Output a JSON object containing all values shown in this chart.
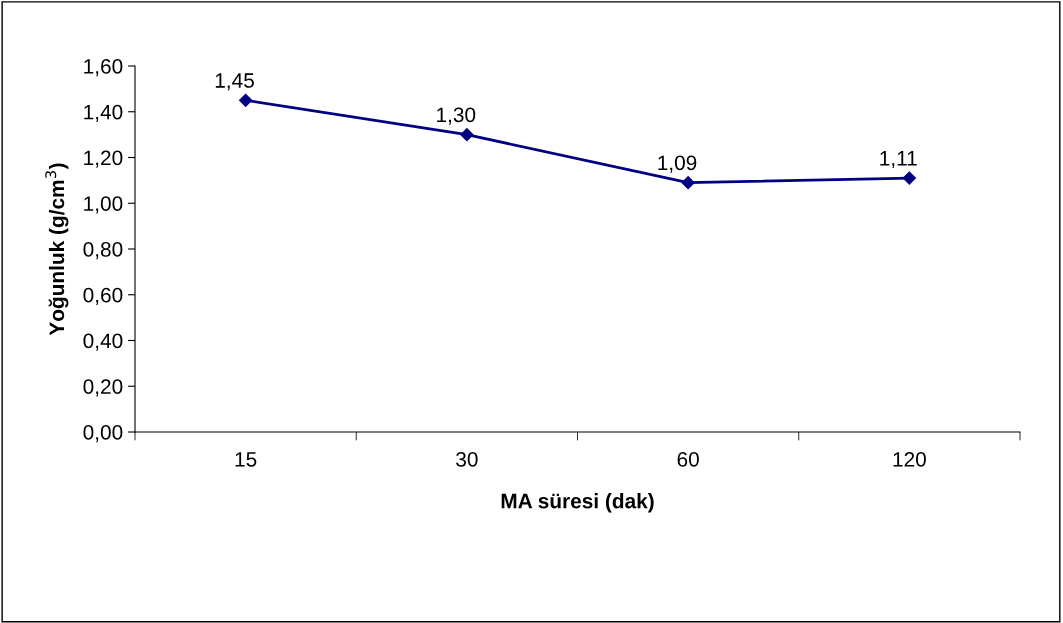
{
  "chart_data": {
    "type": "line",
    "xlabel": "MA süresi (dak)",
    "ylabel": "Yoğunluk (g/cm$^{3}$)",
    "categories": [
      "15",
      "30",
      "60",
      "120"
    ],
    "series": [
      {
        "color": "#000080",
        "values": [
          1.45,
          1.3,
          1.09,
          1.11
        ],
        "value_labels": [
          "1,45",
          "1,30",
          "1,09",
          "1,11"
        ]
      }
    ],
    "ylim": [
      0,
      1.6
    ],
    "yticks": [
      {
        "value": 0,
        "label": "0,00"
      },
      {
        "value": 0.2,
        "label": "0,20"
      },
      {
        "value": 0.4,
        "label": "0,40"
      },
      {
        "value": 0.6,
        "label": "0,60"
      },
      {
        "value": 0.8,
        "label": "0,80"
      },
      {
        "value": 1.0,
        "label": "1,00"
      },
      {
        "value": 1.2,
        "label": "1,20"
      },
      {
        "value": 1.4,
        "label": "1,40"
      },
      {
        "value": 1.6,
        "label": "1,60"
      }
    ],
    "grid": false,
    "legend": false,
    "marker": "diamond",
    "line_style": "solid"
  }
}
